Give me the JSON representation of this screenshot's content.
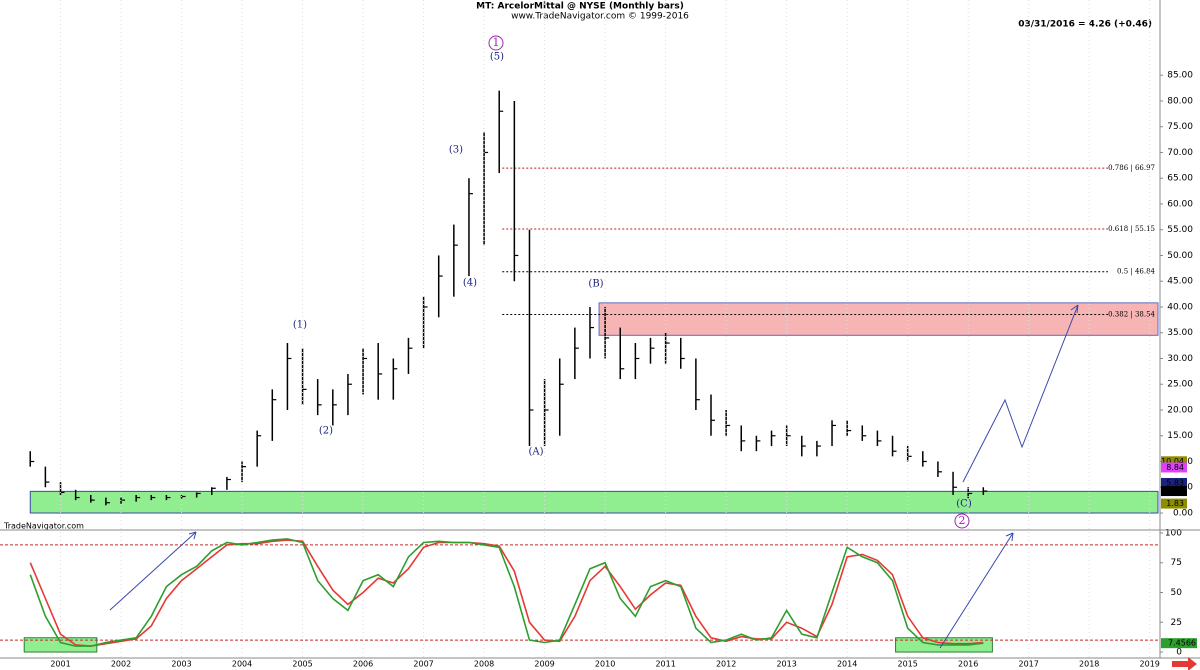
{
  "chart_data": [
    {
      "type": "ohlc",
      "title": "MT:  ArcelorMittal @ NYSE  (Monthly bars)",
      "subtitle": "www.TradeNavigator.com © 1999-2016",
      "last_quote": "03/31/2016 = 4.26 (+0.46)",
      "source": "TradeNavigator.com",
      "color": "#000000",
      "xlim": [
        2000,
        2019.17
      ],
      "ylim": [
        -3.3,
        99.6
      ],
      "yticks": [
        {
          "value": 0,
          "label": "0.00"
        },
        {
          "value": 5,
          "label": "5.00"
        },
        {
          "value": 10,
          "label": "10.00"
        },
        {
          "value": 15,
          "label": "15.00"
        },
        {
          "value": 20,
          "label": "20.00"
        },
        {
          "value": 25,
          "label": "25.00"
        },
        {
          "value": 30,
          "label": "30.00"
        },
        {
          "value": 35,
          "label": "35.00"
        },
        {
          "value": 40,
          "label": "40.00"
        },
        {
          "value": 45,
          "label": "45.00"
        },
        {
          "value": 50,
          "label": "50.00"
        },
        {
          "value": 55,
          "label": "55.00"
        },
        {
          "value": 60,
          "label": "60.00"
        },
        {
          "value": 65,
          "label": "65.00"
        },
        {
          "value": 70,
          "label": "70.00"
        },
        {
          "value": 75,
          "label": "75.00"
        },
        {
          "value": 80,
          "label": "80.00"
        },
        {
          "value": 85,
          "label": "85.00"
        }
      ],
      "x": [
        2000.5,
        2000.75,
        2001,
        2001.25,
        2001.5,
        2001.75,
        2002,
        2002.25,
        2002.5,
        2002.75,
        2003,
        2003.25,
        2003.5,
        2003.75,
        2004,
        2004.25,
        2004.5,
        2004.75,
        2005,
        2005.25,
        2005.5,
        2005.75,
        2006,
        2006.25,
        2006.5,
        2006.75,
        2007,
        2007.25,
        2007.5,
        2007.75,
        2008,
        2008.25,
        2008.5,
        2008.75,
        2009,
        2009.25,
        2009.5,
        2009.75,
        2010,
        2010.25,
        2010.5,
        2010.75,
        2011,
        2011.25,
        2011.5,
        2011.75,
        2012,
        2012.25,
        2012.5,
        2012.75,
        2013,
        2013.25,
        2013.5,
        2013.75,
        2014,
        2014.25,
        2014.5,
        2014.75,
        2015,
        2015.25,
        2015.5,
        2015.75,
        2016,
        2016.25
      ],
      "high": [
        12,
        9,
        6,
        4.5,
        3.5,
        3,
        3,
        3.5,
        3.5,
        3.5,
        3.5,
        4,
        5,
        7,
        10,
        16,
        24,
        33,
        32,
        26,
        24,
        27,
        32,
        33,
        30,
        34,
        42,
        50,
        56,
        65,
        74,
        82,
        80,
        55,
        26,
        30,
        36,
        40,
        40,
        36,
        33,
        34,
        35,
        34,
        30,
        23,
        20,
        17,
        15,
        16,
        17,
        15,
        14,
        18,
        18,
        17,
        16,
        15,
        13,
        12,
        10,
        8,
        5,
        5
      ],
      "low": [
        9,
        5,
        3.5,
        2.5,
        2,
        1.5,
        1.8,
        2.2,
        2.5,
        2.5,
        2.8,
        3,
        3.5,
        4.5,
        6,
        9,
        14,
        20,
        21,
        19,
        17,
        19,
        23,
        22,
        22,
        27,
        32,
        38,
        42,
        46,
        52,
        66,
        45,
        13,
        13,
        15,
        26,
        30,
        30,
        26,
        26,
        29,
        29,
        28,
        20,
        15,
        15,
        12,
        12,
        13,
        13,
        11,
        11,
        13,
        15,
        14,
        13,
        11,
        10,
        9,
        7,
        3.5,
        2.9,
        3.5
      ],
      "close": [
        10,
        6,
        4,
        3,
        2.5,
        2,
        2.5,
        3,
        3,
        3,
        3.2,
        3.8,
        4.8,
        6.5,
        9,
        15,
        22,
        30,
        24,
        21,
        21,
        25,
        30,
        27,
        28,
        32,
        40,
        46,
        52,
        62,
        70,
        78,
        50,
        20,
        20,
        25,
        32,
        36,
        34,
        28,
        30,
        32,
        33,
        30,
        22,
        18,
        17,
        14,
        14,
        15,
        15,
        13,
        13,
        17,
        16,
        15,
        14,
        12,
        11,
        10,
        8,
        5,
        3.8,
        4.26
      ],
      "levels": [
        {
          "label": "0.786 | 66.97",
          "value": 66.97,
          "color": "#b71c1c"
        },
        {
          "label": "0.618 | 55.15",
          "value": 55.15,
          "color": "#b71c1c"
        },
        {
          "label": "0.5 | 46.84",
          "value": 46.84,
          "color": "#000000"
        },
        {
          "label": "0.382 | 38.54",
          "value": 38.54,
          "color": "#000000"
        }
      ],
      "zones": [
        {
          "x0": 2009.9,
          "ymin": 34.5,
          "ymax": 40.8,
          "color": "#f7b4b4",
          "edge": "#5c6bc0"
        },
        {
          "x0": 2000.5,
          "ymin": 0,
          "ymax": 4.2,
          "color": "#90ee90",
          "edge": "#3949ab"
        }
      ],
      "right_labels": [
        {
          "value": 10.04,
          "color": "#8d8d00"
        },
        {
          "value": 8.84,
          "color": "#e040fb"
        },
        {
          "value": 5.83,
          "color": "#1a237e"
        },
        {
          "value": 4.26,
          "color": "#000000"
        },
        {
          "value": 1.83,
          "color": "#8d8d00"
        }
      ]
    },
    {
      "type": "line",
      "xlim": [
        2000,
        2019.17
      ],
      "ylim": [
        -5,
        102.5
      ],
      "xticks": [
        2001,
        2002,
        2003,
        2004,
        2005,
        2006,
        2007,
        2008,
        2009,
        2010,
        2011,
        2012,
        2013,
        2014,
        2015,
        2016,
        2017,
        2018,
        2019
      ],
      "yticks": [
        0,
        25,
        50,
        75,
        100
      ],
      "guides": [
        90,
        10
      ],
      "zones": [
        {
          "x0": 2000.4,
          "x1": 2001.6,
          "ymin": 0,
          "ymax": 12
        },
        {
          "x0": 2014.8,
          "x1": 2016.4,
          "ymin": 0,
          "ymax": 12
        }
      ],
      "x": [
        2000.5,
        2000.75,
        2001,
        2001.25,
        2001.5,
        2001.75,
        2002,
        2002.25,
        2002.5,
        2002.75,
        2003,
        2003.25,
        2003.5,
        2003.75,
        2004,
        2004.25,
        2004.5,
        2004.75,
        2005,
        2005.25,
        2005.5,
        2005.75,
        2006,
        2006.25,
        2006.5,
        2006.75,
        2007,
        2007.25,
        2007.5,
        2007.75,
        2008,
        2008.25,
        2008.5,
        2008.75,
        2009,
        2009.25,
        2009.5,
        2009.75,
        2010,
        2010.25,
        2010.5,
        2010.75,
        2011,
        2011.25,
        2011.5,
        2011.75,
        2012,
        2012.25,
        2012.5,
        2012.75,
        2013,
        2013.25,
        2013.5,
        2013.75,
        2014,
        2014.25,
        2014.5,
        2014.75,
        2015,
        2015.25,
        2015.5,
        2015.75,
        2016,
        2016.25
      ],
      "series": [
        {
          "color": "#e53935",
          "values": [
            75,
            45,
            15,
            6,
            5,
            7,
            9,
            11,
            22,
            45,
            60,
            70,
            80,
            90,
            91,
            91,
            93,
            94,
            93,
            72,
            52,
            40,
            50,
            62,
            58,
            70,
            88,
            92,
            92,
            92,
            91,
            89,
            68,
            25,
            10,
            9,
            30,
            60,
            72,
            55,
            36,
            48,
            58,
            56,
            30,
            12,
            9,
            13,
            11,
            11,
            25,
            20,
            13,
            40,
            80,
            82,
            77,
            65,
            30,
            12,
            8,
            7,
            7,
            8
          ]
        },
        {
          "color": "#2e9e2e",
          "values": [
            65,
            30,
            8,
            5,
            5,
            8,
            10,
            12,
            30,
            55,
            65,
            72,
            85,
            92,
            90,
            92,
            94,
            95,
            92,
            60,
            45,
            35,
            60,
            65,
            55,
            80,
            92,
            93,
            92,
            92,
            90,
            88,
            55,
            10,
            8,
            10,
            40,
            70,
            75,
            45,
            30,
            55,
            60,
            55,
            20,
            8,
            10,
            15,
            10,
            12,
            35,
            15,
            12,
            50,
            88,
            80,
            75,
            60,
            20,
            8,
            6,
            6,
            6,
            7.4566
          ]
        }
      ],
      "right_labels": [
        {
          "value": 7.4566,
          "color": "#2e9e2e"
        }
      ]
    }
  ]
}
